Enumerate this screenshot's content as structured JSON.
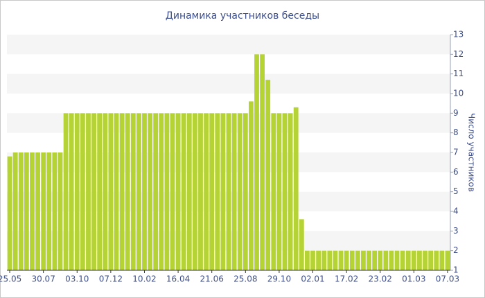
{
  "chart_data": {
    "type": "bar",
    "title": "Динамика участников беседы",
    "y_label": "Число участников",
    "categories": [
      "25.05",
      null,
      null,
      null,
      null,
      null,
      "30.07",
      null,
      null,
      null,
      null,
      null,
      "03.10",
      null,
      null,
      null,
      null,
      null,
      "07.12",
      null,
      null,
      null,
      null,
      null,
      "10.02",
      null,
      null,
      null,
      null,
      null,
      "16.04",
      null,
      null,
      null,
      null,
      null,
      "21.06",
      null,
      null,
      null,
      null,
      null,
      "25.08",
      null,
      null,
      null,
      null,
      null,
      "29.10",
      null,
      null,
      null,
      null,
      null,
      "02.01",
      null,
      null,
      null,
      null,
      null,
      "17.02",
      null,
      null,
      null,
      null,
      null,
      "23.02",
      null,
      null,
      null,
      null,
      null,
      "01.03",
      null,
      null,
      null,
      null,
      null,
      "07.03"
    ],
    "values": [
      6.8,
      7,
      7,
      7,
      7,
      7,
      7,
      7,
      7,
      7,
      9,
      9,
      9,
      9,
      9,
      9,
      9,
      9,
      9,
      9,
      9,
      9,
      9,
      9,
      9,
      9,
      9,
      9,
      9,
      9,
      9,
      9,
      9,
      9,
      9,
      9,
      9,
      9,
      9,
      9,
      9,
      9,
      9,
      9.6,
      12,
      12,
      10.7,
      9,
      9,
      9,
      9,
      9.3,
      3.6,
      2,
      2,
      2,
      2,
      2,
      2,
      2,
      2,
      2,
      2,
      2,
      2,
      2,
      2,
      2,
      2,
      2,
      2,
      2,
      2,
      2,
      2,
      2,
      2,
      2,
      2
    ],
    "color": "#b5d334",
    "ylim": [
      1,
      13
    ],
    "yticks": [
      1,
      2,
      3,
      4,
      5,
      6,
      7,
      8,
      9,
      10,
      11,
      12,
      13
    ],
    "grid": true,
    "y_axis_side": "right"
  }
}
